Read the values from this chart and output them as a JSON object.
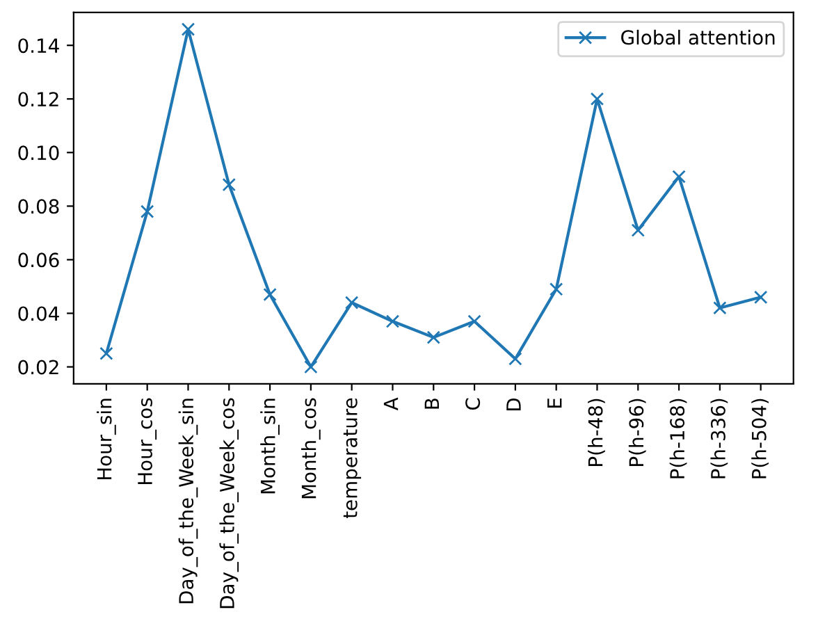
{
  "chart_data": {
    "type": "line",
    "categories": [
      "Hour_sin",
      "Hour_cos",
      "Day_of_the_Week_sin",
      "Day_of_the_Week_cos",
      "Month_sin",
      "Month_cos",
      "temperature",
      "A",
      "B",
      "C",
      "D",
      "E",
      "P(h-48)",
      "P(h-96)",
      "P(h-168)",
      "P(h-336)",
      "P(h-504)"
    ],
    "series": [
      {
        "name": "Global attention",
        "color": "#1f77b4",
        "values": [
          0.025,
          0.078,
          0.146,
          0.088,
          0.047,
          0.02,
          0.044,
          0.037,
          0.031,
          0.037,
          0.023,
          0.049,
          0.12,
          0.071,
          0.091,
          0.042,
          0.046
        ]
      }
    ],
    "ylim": [
      0.0137,
      0.1523
    ],
    "yticks": [
      {
        "value": 0.02,
        "label": "0.02"
      },
      {
        "value": 0.04,
        "label": "0.04"
      },
      {
        "value": 0.06,
        "label": "0.06"
      },
      {
        "value": 0.08,
        "label": "0.08"
      },
      {
        "value": 0.1,
        "label": "0.10"
      },
      {
        "value": 0.12,
        "label": "0.12"
      },
      {
        "value": 0.14,
        "label": "0.14"
      }
    ],
    "marker": "cross",
    "line_style": "solid",
    "legend": "top right",
    "grid": false
  }
}
